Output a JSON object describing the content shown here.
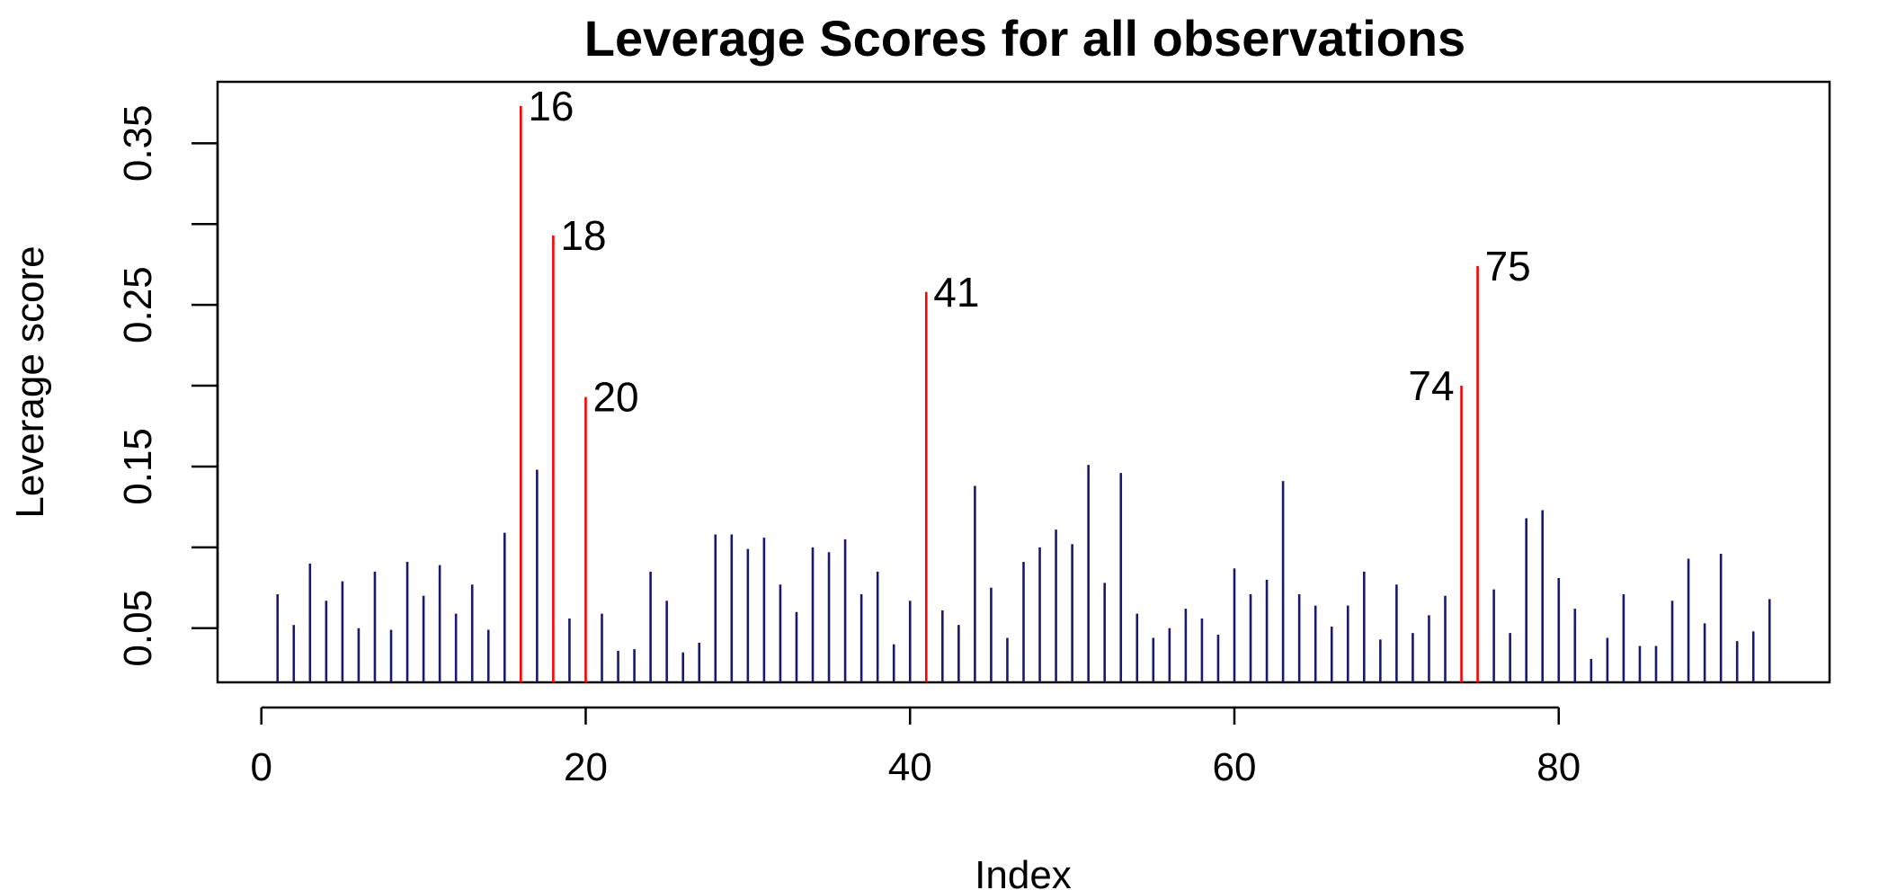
{
  "chart_data": {
    "type": "bar",
    "style": "needle",
    "title": "Leverage Scores for all observations",
    "xlabel": "Index",
    "ylabel": "Leverage score",
    "xlim": [
      -2.7,
      96.7
    ],
    "ylim": [
      0.0165,
      0.388
    ],
    "x_ticks": [
      0,
      20,
      40,
      60,
      80
    ],
    "y_ticks": [
      0.05,
      0.15,
      0.25,
      0.35
    ],
    "colors": {
      "normal": "#191970",
      "highlight": "#ff0000",
      "frame": "#000000"
    },
    "highlighted_indices": [
      16,
      18,
      20,
      41,
      74,
      75
    ],
    "point_labels": [
      {
        "index": 16,
        "text": "16",
        "side": "right"
      },
      {
        "index": 18,
        "text": "18",
        "side": "right"
      },
      {
        "index": 20,
        "text": "20",
        "side": "right"
      },
      {
        "index": 41,
        "text": "41",
        "side": "right"
      },
      {
        "index": 74,
        "text": "74",
        "side": "left"
      },
      {
        "index": 75,
        "text": "75",
        "side": "right"
      }
    ],
    "x": [
      1,
      2,
      3,
      4,
      5,
      6,
      7,
      8,
      9,
      10,
      11,
      12,
      13,
      14,
      15,
      16,
      17,
      18,
      19,
      20,
      21,
      22,
      23,
      24,
      25,
      26,
      27,
      28,
      29,
      30,
      31,
      32,
      33,
      34,
      35,
      36,
      37,
      38,
      39,
      40,
      41,
      42,
      43,
      44,
      45,
      46,
      47,
      48,
      49,
      50,
      51,
      52,
      53,
      54,
      55,
      56,
      57,
      58,
      59,
      60,
      61,
      62,
      63,
      64,
      65,
      66,
      67,
      68,
      69,
      70,
      71,
      72,
      73,
      74,
      75,
      76,
      77,
      78,
      79,
      80,
      81,
      82,
      83,
      84,
      85,
      86,
      87,
      88,
      89,
      90,
      91,
      92,
      93
    ],
    "values": [
      0.071,
      0.052,
      0.09,
      0.067,
      0.079,
      0.05,
      0.085,
      0.049,
      0.091,
      0.07,
      0.089,
      0.059,
      0.077,
      0.049,
      0.109,
      0.373,
      0.148,
      0.293,
      0.056,
      0.193,
      0.059,
      0.036,
      0.037,
      0.085,
      0.067,
      0.035,
      0.041,
      0.108,
      0.108,
      0.099,
      0.106,
      0.077,
      0.06,
      0.1,
      0.097,
      0.105,
      0.071,
      0.085,
      0.04,
      0.067,
      0.258,
      0.061,
      0.052,
      0.138,
      0.075,
      0.044,
      0.091,
      0.1,
      0.111,
      0.102,
      0.151,
      0.078,
      0.146,
      0.059,
      0.044,
      0.05,
      0.062,
      0.056,
      0.046,
      0.087,
      0.071,
      0.08,
      0.141,
      0.071,
      0.064,
      0.051,
      0.064,
      0.085,
      0.043,
      0.077,
      0.047,
      0.058,
      0.07,
      0.2,
      0.274,
      0.074,
      0.047,
      0.118,
      0.123,
      0.081,
      0.062,
      0.031,
      0.044,
      0.071,
      0.039,
      0.039,
      0.067,
      0.093,
      0.053,
      0.096,
      0.042,
      0.048,
      0.068
    ]
  }
}
